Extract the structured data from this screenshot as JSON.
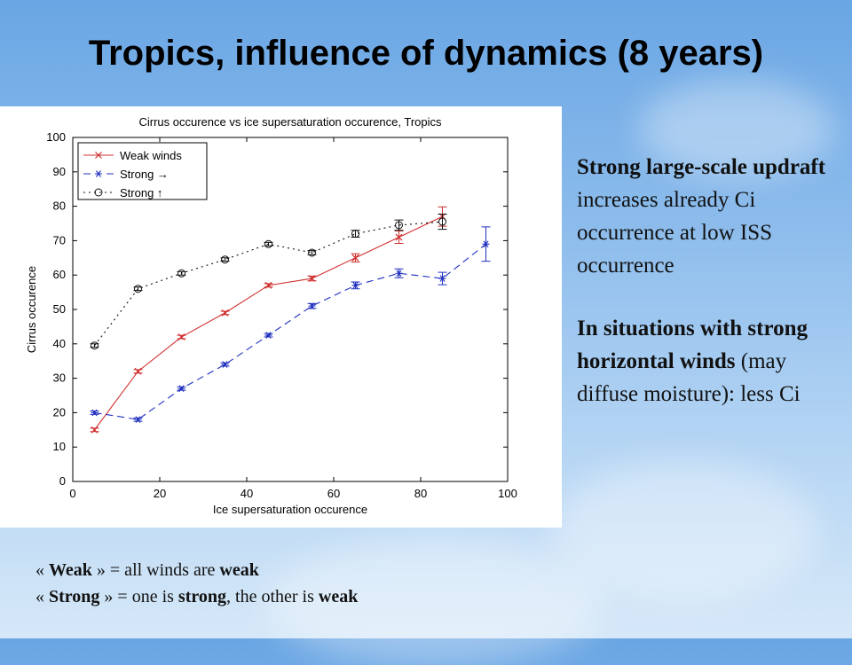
{
  "slide": {
    "title": "Tropics, influence of dynamics (8 years)"
  },
  "colors": {
    "weak": "#d03030",
    "strong_horizontal": "#2030c0",
    "strong_updraft": "#111111"
  },
  "right_text": {
    "p1_bold": "Strong large-scale updraft",
    "p1_rest": " increases already Ci occurrence at low ISS occurrence",
    "p2_bold": "In situations with strong horizontal winds",
    "p2_rest": " (may diffuse moisture):  less Ci"
  },
  "notes": {
    "line1": {
      "open": "« ",
      "term": "Weak",
      "mid": " » = all winds are ",
      "emph": "weak",
      "end": ""
    },
    "line2": {
      "open": "« ",
      "term": "Strong",
      "mid": " » = one is ",
      "emph": "strong",
      "end": ", the other is ",
      "emph2": "weak"
    }
  },
  "chart_data": {
    "type": "line",
    "title": "Cirrus occurence vs ice supersaturation occurence, Tropics",
    "xlabel": "Ice supersaturation occurence",
    "ylabel": "Cirrus occurence",
    "xlim": [
      0,
      100
    ],
    "ylim": [
      0,
      100
    ],
    "xticks": [
      0,
      20,
      40,
      60,
      80,
      100
    ],
    "yticks": [
      0,
      10,
      20,
      30,
      40,
      50,
      60,
      70,
      80,
      90,
      100
    ],
    "grid": false,
    "legend_position": "top-left",
    "series": [
      {
        "name": "Weak winds",
        "color": "#d03030",
        "line_style": "solid",
        "marker": "x",
        "x": [
          5,
          15,
          25,
          35,
          45,
          55,
          65,
          75,
          85
        ],
        "y": [
          15,
          32,
          42,
          49,
          57,
          59,
          65,
          71,
          77
        ],
        "err": [
          0.5,
          0.5,
          0.5,
          0.5,
          0.5,
          0.7,
          1.2,
          1.8,
          2.8
        ]
      },
      {
        "name": "Strong",
        "legend_symbol": "→",
        "color": "#2030c0",
        "line_style": "dashed",
        "marker": "*",
        "x": [
          5,
          15,
          25,
          35,
          45,
          55,
          65,
          75,
          85,
          95
        ],
        "y": [
          20,
          18,
          27,
          34,
          42.5,
          51,
          57,
          60.5,
          59,
          69
        ],
        "err": [
          0.5,
          0.5,
          0.5,
          0.5,
          0.5,
          0.7,
          1,
          1.3,
          1.8,
          5
        ]
      },
      {
        "name": "Strong",
        "legend_symbol": "↑",
        "color": "#111111",
        "line_style": "dotted",
        "marker": "o",
        "x": [
          5,
          15,
          25,
          35,
          45,
          55,
          65,
          75,
          85
        ],
        "y": [
          39.5,
          56,
          60.5,
          64.5,
          69,
          66.5,
          72,
          74.5,
          75.5
        ],
        "err": [
          0.5,
          0.5,
          0.5,
          0.5,
          0.5,
          0.6,
          1,
          1.5,
          2.2
        ]
      }
    ]
  }
}
